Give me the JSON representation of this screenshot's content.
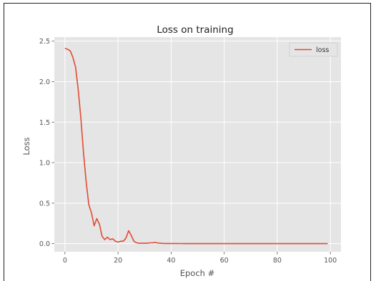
{
  "chart_data": {
    "type": "line",
    "title": "Loss on training",
    "xlabel": "Epoch #",
    "ylabel": "Loss",
    "xlim": [
      -4,
      104
    ],
    "ylim": [
      -0.1,
      2.55
    ],
    "xticks": [
      0,
      20,
      40,
      60,
      80,
      100
    ],
    "yticks": [
      0.0,
      0.5,
      1.0,
      1.5,
      2.0,
      2.5
    ],
    "ytick_labels": [
      "0.0",
      "0.5",
      "1.0",
      "1.5",
      "2.0",
      "2.5"
    ],
    "grid": true,
    "legend_position": "top-right",
    "background": "#e5e5e5",
    "series": [
      {
        "name": "loss",
        "color": "#e24a33",
        "x": [
          0,
          1,
          2,
          3,
          4,
          5,
          6,
          7,
          8,
          9,
          10,
          11,
          12,
          13,
          14,
          15,
          16,
          17,
          18,
          19,
          20,
          21,
          22,
          23,
          24,
          25,
          26,
          27,
          28,
          29,
          30,
          31,
          32,
          33,
          34,
          35,
          36,
          37,
          38,
          39,
          40,
          45,
          50,
          55,
          60,
          65,
          70,
          75,
          80,
          85,
          90,
          95,
          99
        ],
        "y": [
          2.41,
          2.4,
          2.38,
          2.3,
          2.18,
          1.9,
          1.55,
          1.12,
          0.76,
          0.48,
          0.38,
          0.22,
          0.31,
          0.24,
          0.09,
          0.05,
          0.08,
          0.05,
          0.06,
          0.03,
          0.02,
          0.03,
          0.03,
          0.07,
          0.16,
          0.1,
          0.03,
          0.01,
          0.005,
          0.005,
          0.005,
          0.005,
          0.01,
          0.01,
          0.015,
          0.008,
          0.005,
          0.003,
          0.002,
          0.002,
          0.002,
          0.001,
          0.001,
          0.001,
          0.001,
          0.001,
          0.001,
          0.001,
          0.001,
          0.001,
          0.001,
          0.001,
          0.001
        ]
      }
    ]
  }
}
